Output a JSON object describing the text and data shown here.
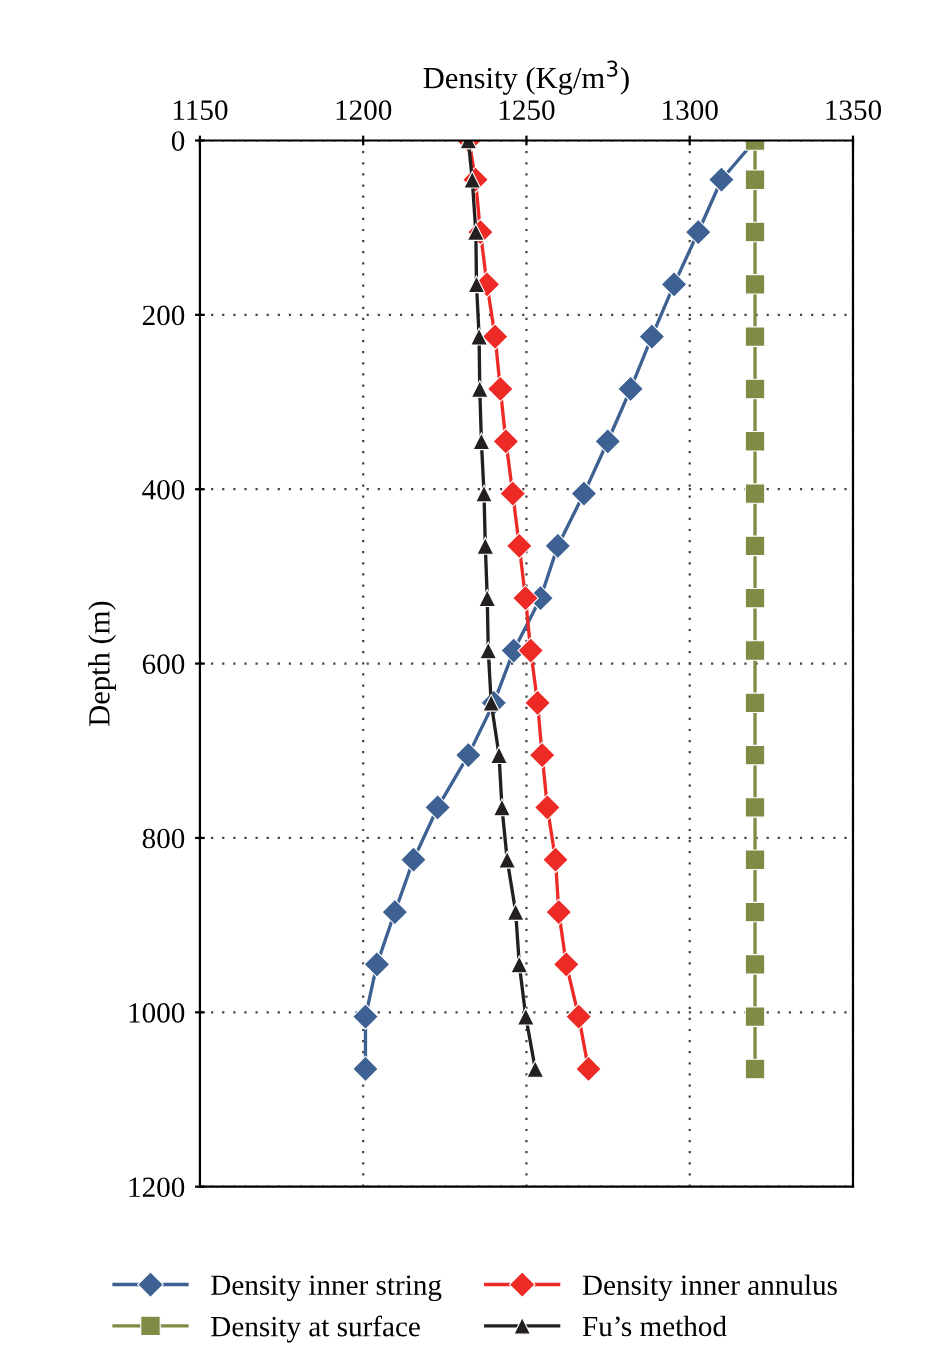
{
  "chart_data": {
    "type": "line",
    "orientation": "horizontal",
    "xlabel": "Density (Kg/m$^{3}$)",
    "ylabel": "Depth (m)",
    "x": [
      0,
      45,
      105,
      165,
      225,
      285,
      345,
      405,
      465,
      525,
      585,
      645,
      705,
      765,
      825,
      885,
      945,
      1005,
      1065
    ],
    "series": [
      {
        "name": "Density inner string",
        "color": "#3d6192",
        "marker": "diamond",
        "values": [
          1320,
          1309.7,
          1302.6,
          1295.2,
          1288.4,
          1281.9,
          1274.9,
          1267.6,
          1259.6,
          1254.3,
          1246.1,
          1240,
          1232.2,
          1222.8,
          1215.4,
          1209.7,
          1204.2,
          1200.7,
          1200.7
        ]
      },
      {
        "name": "Density at surface",
        "color": "#7f8c45",
        "marker": "square",
        "values": [
          1320,
          1320,
          1320,
          1320,
          1320,
          1320,
          1320,
          1320,
          1320,
          1320,
          1320,
          1320,
          1320,
          1320,
          1320,
          1320,
          1320,
          1320,
          1320
        ]
      },
      {
        "name": "Density inner annulus",
        "color": "#ee2a26",
        "marker": "diamond",
        "values": [
          1232.4,
          1234.4,
          1235.9,
          1237.9,
          1240.4,
          1242,
          1243.7,
          1245.8,
          1247.8,
          1249.7,
          1251.3,
          1253.4,
          1254.8,
          1256.4,
          1258.9,
          1259.9,
          1262.2,
          1266,
          1269
        ]
      },
      {
        "name": "Fu’s method",
        "color": "#231f20",
        "marker": "triangle",
        "values": [
          1232.2,
          1233.4,
          1234.5,
          1234.7,
          1235.5,
          1235.7,
          1236.2,
          1237,
          1237.4,
          1238,
          1238.3,
          1239.2,
          1241.6,
          1242.5,
          1244.1,
          1246.7,
          1247.8,
          1249.8,
          1252.7
        ]
      }
    ],
    "xlim": [
      1150,
      1350
    ],
    "xticks": [
      1150,
      1200,
      1250,
      1300,
      1350
    ],
    "ylim": [
      1200,
      0
    ],
    "yticks": [
      0,
      200,
      400,
      600,
      800,
      1000,
      1200
    ],
    "grid": true,
    "legend": "bottom"
  }
}
